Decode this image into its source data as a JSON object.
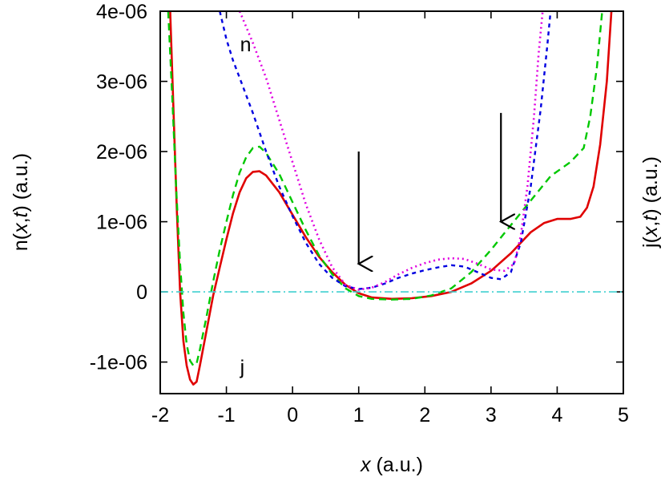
{
  "chart_data": {
    "type": "line",
    "xlabel": {
      "var": "x",
      "unit": " (a.u.)"
    },
    "ylabel_left": {
      "pre": "n(",
      "var1": "x",
      "sep": ",",
      "var2": "t",
      "post": ") (a.u.)"
    },
    "ylabel_right": {
      "pre": "j(",
      "var1": "x",
      "sep": ",",
      "var2": "t",
      "post": ") (a.u.)"
    },
    "xlim": [
      -2,
      5
    ],
    "ylim": [
      -1.45e-06,
      4e-06
    ],
    "xticks": [
      -2,
      -1,
      0,
      1,
      2,
      3,
      4,
      5
    ],
    "xtick_labels": [
      "-2",
      "-1",
      "0",
      "1",
      "2",
      "3",
      "4",
      "5"
    ],
    "yticks": [
      -1e-06,
      0,
      1e-06,
      2e-06,
      3e-06,
      4e-06
    ],
    "ytick_labels": [
      "-1e-06",
      "0",
      "1e-06",
      "2e-06",
      "3e-06",
      "4e-06"
    ],
    "annotations": [
      {
        "text": "n",
        "x": -1.0,
        "y": 3.5e-06
      },
      {
        "text": "j",
        "x": -1.0,
        "y": -1.1e-06
      }
    ],
    "arrows": [
      {
        "x": 1.0,
        "y_from": 2e-06,
        "y_to": 4e-07
      },
      {
        "x": 3.15,
        "y_from": 2.55e-06,
        "y_to": 1e-06
      }
    ],
    "series": [
      {
        "color": "#e00000",
        "dash": "solid",
        "width": 2.6,
        "points": [
          [
            -1.85,
            4e-06
          ],
          [
            -1.8,
            2.6e-06
          ],
          [
            -1.75,
            1.2e-06
          ],
          [
            -1.7,
            0.0
          ],
          [
            -1.65,
            -7e-07
          ],
          [
            -1.6,
            -1.05e-06
          ],
          [
            -1.55,
            -1.25e-06
          ],
          [
            -1.5,
            -1.32e-06
          ],
          [
            -1.45,
            -1.28e-06
          ],
          [
            -1.4,
            -1.05e-06
          ],
          [
            -1.3,
            -5.5e-07
          ],
          [
            -1.2,
            -5e-08
          ],
          [
            -1.1,
            3.5e-07
          ],
          [
            -1.0,
            7.5e-07
          ],
          [
            -0.9,
            1.12e-06
          ],
          [
            -0.8,
            1.42e-06
          ],
          [
            -0.7,
            1.62e-06
          ],
          [
            -0.6,
            1.71e-06
          ],
          [
            -0.5,
            1.72e-06
          ],
          [
            -0.4,
            1.66e-06
          ],
          [
            -0.2,
            1.42e-06
          ],
          [
            0.0,
            1.1e-06
          ],
          [
            0.2,
            7.8e-07
          ],
          [
            0.4,
            5e-07
          ],
          [
            0.6,
            2.8e-07
          ],
          [
            0.8,
            1e-07
          ],
          [
            1.0,
            -2e-08
          ],
          [
            1.2,
            -8e-08
          ],
          [
            1.5,
            -1e-07
          ],
          [
            1.8,
            -9e-08
          ],
          [
            2.1,
            -6e-08
          ],
          [
            2.4,
            0.0
          ],
          [
            2.7,
            1.2e-07
          ],
          [
            3.0,
            3e-07
          ],
          [
            3.3,
            5.5e-07
          ],
          [
            3.6,
            8.5e-07
          ],
          [
            3.8,
            9.8e-07
          ],
          [
            4.0,
            1.04e-06
          ],
          [
            4.2,
            1.04e-06
          ],
          [
            4.35,
            1.07e-06
          ],
          [
            4.45,
            1.2e-06
          ],
          [
            4.55,
            1.5e-06
          ],
          [
            4.65,
            2.1e-06
          ],
          [
            4.75,
            3e-06
          ],
          [
            4.82,
            4e-06
          ]
        ]
      },
      {
        "color": "#00c800",
        "dash": "9,6",
        "width": 2.4,
        "points": [
          [
            -1.88,
            4e-06
          ],
          [
            -1.82,
            2.8e-06
          ],
          [
            -1.76,
            1.5e-06
          ],
          [
            -1.7,
            4e-07
          ],
          [
            -1.65,
            -3e-07
          ],
          [
            -1.6,
            -7.5e-07
          ],
          [
            -1.55,
            -9.8e-07
          ],
          [
            -1.5,
            -1.05e-06
          ],
          [
            -1.45,
            -1.02e-06
          ],
          [
            -1.4,
            -8.2e-07
          ],
          [
            -1.3,
            -3.5e-07
          ],
          [
            -1.2,
            1.5e-07
          ],
          [
            -1.1,
            6e-07
          ],
          [
            -1.0,
            1e-06
          ],
          [
            -0.9,
            1.38e-06
          ],
          [
            -0.8,
            1.7e-06
          ],
          [
            -0.7,
            1.92e-06
          ],
          [
            -0.6,
            2.05e-06
          ],
          [
            -0.5,
            2.07e-06
          ],
          [
            -0.4,
            1.98e-06
          ],
          [
            -0.2,
            1.68e-06
          ],
          [
            0.0,
            1.28e-06
          ],
          [
            0.2,
            8.8e-07
          ],
          [
            0.4,
            5.2e-07
          ],
          [
            0.6,
            2.5e-07
          ],
          [
            0.8,
            5e-08
          ],
          [
            1.0,
            -6e-08
          ],
          [
            1.2,
            -1e-07
          ],
          [
            1.5,
            -1.1e-07
          ],
          [
            1.8,
            -1e-07
          ],
          [
            2.1,
            -5e-08
          ],
          [
            2.4,
            5e-08
          ],
          [
            2.7,
            2.8e-07
          ],
          [
            3.0,
            6e-07
          ],
          [
            3.3,
            9.5e-07
          ],
          [
            3.6,
            1.3e-06
          ],
          [
            3.9,
            1.65e-06
          ],
          [
            4.2,
            1.85e-06
          ],
          [
            4.4,
            2.05e-06
          ],
          [
            4.5,
            2.5e-06
          ],
          [
            4.6,
            3.2e-06
          ],
          [
            4.68,
            4e-06
          ]
        ]
      },
      {
        "color": "#0000e0",
        "dash": "5,5",
        "width": 2.4,
        "points": [
          [
            -1.1,
            4e-06
          ],
          [
            -1.0,
            3.6e-06
          ],
          [
            -0.9,
            3.3e-06
          ],
          [
            -0.8,
            3.05e-06
          ],
          [
            -0.6,
            2.55e-06
          ],
          [
            -0.4,
            2e-06
          ],
          [
            -0.2,
            1.5e-06
          ],
          [
            0.0,
            1.08e-06
          ],
          [
            0.2,
            7e-07
          ],
          [
            0.4,
            4e-07
          ],
          [
            0.6,
            2e-07
          ],
          [
            0.8,
            8e-08
          ],
          [
            1.0,
            4e-08
          ],
          [
            1.2,
            6e-08
          ],
          [
            1.4,
            1.2e-07
          ],
          [
            1.6,
            2e-07
          ],
          [
            1.8,
            2.6e-07
          ],
          [
            2.0,
            3.1e-07
          ],
          [
            2.2,
            3.5e-07
          ],
          [
            2.4,
            3.8e-07
          ],
          [
            2.6,
            3.6e-07
          ],
          [
            2.8,
            2.8e-07
          ],
          [
            3.0,
            2e-07
          ],
          [
            3.15,
            1.8e-07
          ],
          [
            3.3,
            2.8e-07
          ],
          [
            3.45,
            7e-07
          ],
          [
            3.6,
            1.5e-06
          ],
          [
            3.75,
            2.6e-06
          ],
          [
            3.85,
            3.5e-06
          ],
          [
            3.9,
            4e-06
          ]
        ]
      },
      {
        "color": "#e000e0",
        "dash": "2,4",
        "width": 2.6,
        "points": [
          [
            -0.8,
            4e-06
          ],
          [
            -0.6,
            3.55e-06
          ],
          [
            -0.4,
            3.05e-06
          ],
          [
            -0.2,
            2.45e-06
          ],
          [
            0.0,
            1.85e-06
          ],
          [
            0.2,
            1.25e-06
          ],
          [
            0.4,
            7.5e-07
          ],
          [
            0.6,
            3.5e-07
          ],
          [
            0.8,
            1e-07
          ],
          [
            1.0,
            3e-08
          ],
          [
            1.2,
            6e-08
          ],
          [
            1.4,
            1.4e-07
          ],
          [
            1.6,
            2.5e-07
          ],
          [
            1.8,
            3.4e-07
          ],
          [
            2.0,
            4.1e-07
          ],
          [
            2.2,
            4.6e-07
          ],
          [
            2.4,
            4.8e-07
          ],
          [
            2.6,
            4.7e-07
          ],
          [
            2.8,
            4e-07
          ],
          [
            3.0,
            3.2e-07
          ],
          [
            3.2,
            3e-07
          ],
          [
            3.35,
            4e-07
          ],
          [
            3.45,
            8e-07
          ],
          [
            3.55,
            1.5e-06
          ],
          [
            3.65,
            2.5e-06
          ],
          [
            3.72,
            3.4e-06
          ],
          [
            3.78,
            4e-06
          ]
        ]
      },
      {
        "color": "#40d0d0",
        "dash": "10,4,2,4",
        "width": 1.6,
        "points": [
          [
            -2.0,
            0.0
          ],
          [
            5.0,
            0.0
          ]
        ]
      }
    ]
  }
}
